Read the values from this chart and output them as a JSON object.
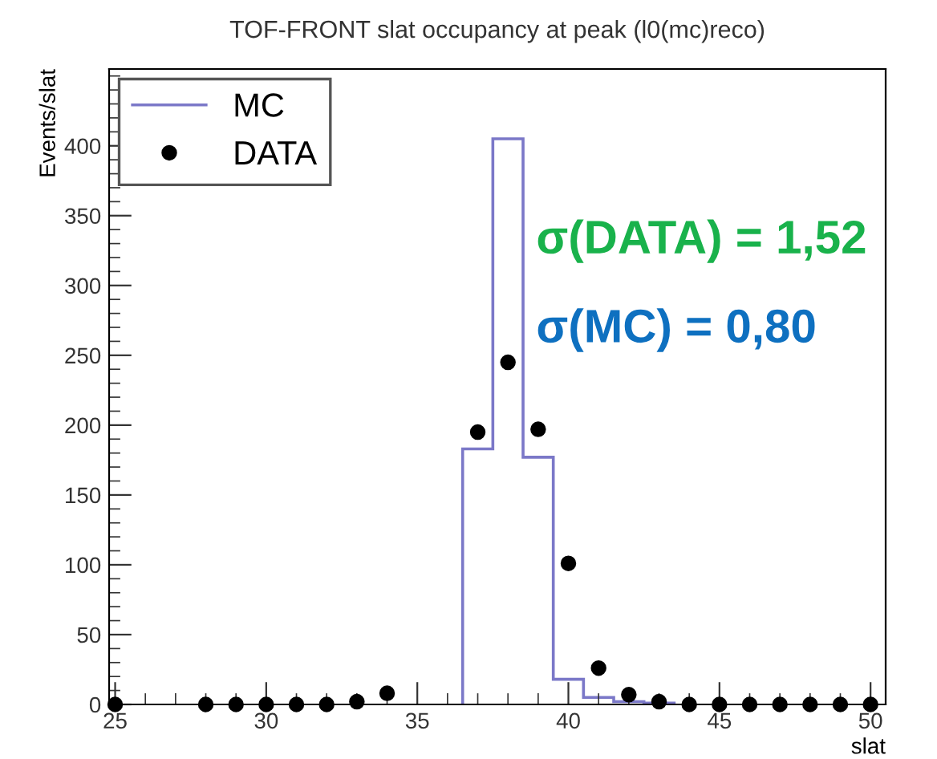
{
  "chart_data": {
    "type": "histogram",
    "title": "TOF-FRONT slat occupancy at peak (l0(mc)reco)",
    "xlabel": "slat",
    "ylabel": "Events/slat",
    "bins": [
      36.5,
      37.5,
      38.5,
      39.5,
      40.5,
      41.5,
      42.5,
      43.5
    ],
    "series": [
      {
        "name": "MC",
        "color": "#7b78c8",
        "values": [
          183,
          405,
          177,
          18,
          5,
          2,
          1
        ]
      },
      {
        "name": "DATA",
        "type": "scatter",
        "color": "#000000",
        "marker": "circle",
        "x": [
          25,
          28,
          29,
          30,
          31,
          32,
          33,
          34,
          37,
          38,
          39,
          40,
          41,
          42,
          43,
          44,
          45,
          46,
          47,
          48,
          49,
          50
        ],
        "values": [
          0,
          0,
          0,
          0,
          0,
          0,
          2,
          8,
          195,
          245,
          197,
          101,
          26,
          7,
          2,
          0,
          0,
          0,
          0,
          0,
          0,
          0
        ]
      }
    ],
    "annotations": [
      "σ(DATA) = 1,52",
      "σ(MC) = 0,80"
    ],
    "xlim": [
      24.8,
      50.5
    ],
    "ylim": [
      0,
      455
    ],
    "xticks": [
      25,
      30,
      35,
      40,
      45,
      50
    ],
    "yticks": [
      0,
      50,
      100,
      150,
      200,
      250,
      300,
      350,
      400
    ],
    "grid": false,
    "legend": "top left"
  }
}
